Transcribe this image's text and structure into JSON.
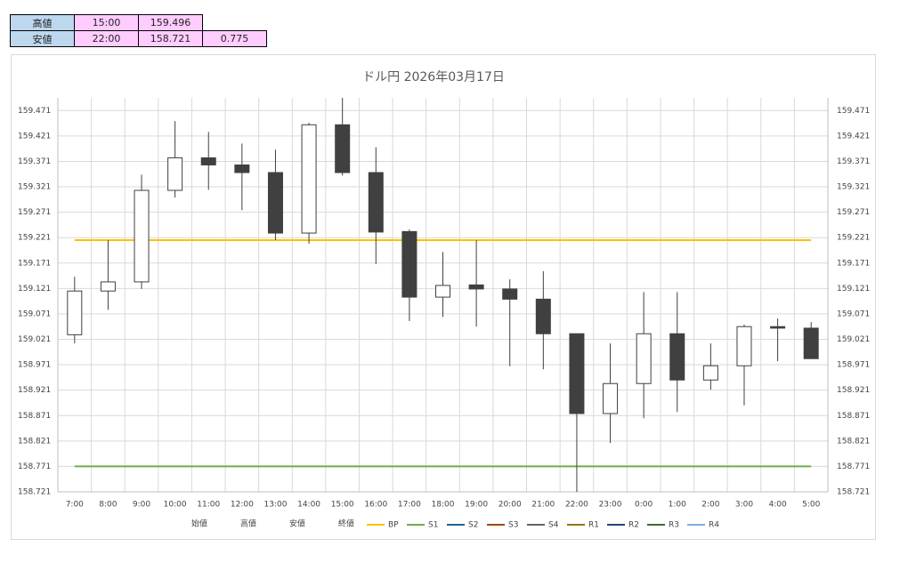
{
  "summary_table": {
    "rows": [
      [
        "高値",
        "15:00",
        "159.496"
      ],
      [
        "安値",
        "22:00",
        "158.721",
        "0.775"
      ]
    ]
  },
  "chart_data": {
    "type": "candlestick",
    "title": "ドル円 2026年03月17日",
    "categories": [
      "7:00",
      "8:00",
      "9:00",
      "10:00",
      "11:00",
      "12:00",
      "13:00",
      "14:00",
      "15:00",
      "16:00",
      "17:00",
      "18:00",
      "19:00",
      "20:00",
      "21:00",
      "22:00",
      "23:00",
      "0:00",
      "1:00",
      "2:00",
      "3:00",
      "4:00",
      "5:00"
    ],
    "ohlc_names": [
      "始値",
      "高値",
      "安値",
      "終値"
    ],
    "open": [
      159.03,
      159.116,
      159.134,
      159.314,
      159.378,
      159.364,
      159.349,
      159.23,
      159.443,
      159.349,
      159.233,
      159.104,
      159.128,
      159.12,
      159.1,
      159.032,
      158.875,
      158.934,
      159.032,
      158.941,
      158.969,
      159.046,
      159.043
    ],
    "high": [
      159.144,
      159.216,
      159.345,
      159.45,
      159.429,
      159.406,
      159.394,
      159.447,
      159.496,
      159.399,
      159.237,
      159.193,
      159.216,
      159.139,
      159.155,
      159.032,
      159.013,
      159.114,
      159.114,
      159.013,
      159.05,
      159.062,
      159.055
    ],
    "low": [
      159.013,
      159.079,
      159.12,
      159.3,
      159.315,
      159.275,
      159.216,
      159.209,
      159.343,
      159.169,
      159.057,
      159.065,
      159.046,
      158.968,
      158.962,
      158.721,
      158.817,
      158.866,
      158.878,
      158.922,
      158.891,
      158.978,
      158.983
    ],
    "close": [
      159.116,
      159.134,
      159.314,
      159.378,
      159.364,
      159.349,
      159.23,
      159.443,
      159.349,
      159.232,
      159.104,
      159.127,
      159.12,
      159.1,
      159.032,
      158.875,
      158.934,
      159.032,
      158.941,
      158.969,
      159.046,
      159.043,
      158.983
    ],
    "up_color": "#ffffff",
    "down_color": "#404040",
    "candle_stroke": "#404040",
    "lines": [
      {
        "name": "BP",
        "color": "#ffc000",
        "value": 159.216
      },
      {
        "name": "S1",
        "color": "#70ad47",
        "value": 158.771
      },
      {
        "name": "S2",
        "color": "#255e91"
      },
      {
        "name": "S3",
        "color": "#9e480e"
      },
      {
        "name": "S4",
        "color": "#636363"
      },
      {
        "name": "R1",
        "color": "#997300"
      },
      {
        "name": "R2",
        "color": "#264478"
      },
      {
        "name": "R3",
        "color": "#43682b"
      },
      {
        "name": "R4",
        "color": "#7cafdd"
      }
    ],
    "ylim": [
      158.721,
      159.496
    ],
    "yticks": [
      158.721,
      158.771,
      158.821,
      158.871,
      158.921,
      158.971,
      159.021,
      159.071,
      159.121,
      159.171,
      159.221,
      159.271,
      159.321,
      159.371,
      159.421,
      159.471
    ],
    "right_axis": true,
    "grid": true
  }
}
